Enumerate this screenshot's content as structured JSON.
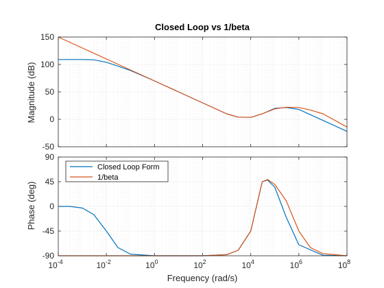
{
  "chart_data": {
    "type": "line",
    "title": "Closed Loop vs 1/beta",
    "xlabel": "Frequency  (rad/s)",
    "xscale": "log",
    "xlim": [
      0.0001,
      100000000
    ],
    "xticks": [
      {
        "value": 0.0001,
        "base": "10",
        "exp": "-4"
      },
      {
        "value": 0.01,
        "base": "10",
        "exp": "-2"
      },
      {
        "value": 1,
        "base": "10",
        "exp": "0"
      },
      {
        "value": 100,
        "base": "10",
        "exp": "2"
      },
      {
        "value": 10000,
        "base": "10",
        "exp": "4"
      },
      {
        "value": 1000000,
        "base": "10",
        "exp": "6"
      },
      {
        "value": 100000000,
        "base": "10",
        "exp": "8"
      }
    ],
    "grid": true,
    "colors": {
      "closed_loop": "#0072BD",
      "inv_beta": "#D95319"
    },
    "legend": {
      "placement": "upper-left of lower panel",
      "entries": [
        "Closed Loop Form",
        "1/beta"
      ]
    },
    "panels": [
      {
        "id": "magnitude",
        "ylabel": "Magnitude (dB)",
        "ylim": [
          -50,
          150
        ],
        "yticks": [
          "150",
          "100",
          "50",
          "0",
          "-50"
        ],
        "yticks_values": [
          150,
          100,
          50,
          0,
          -50
        ],
        "series": [
          {
            "name": "Closed Loop Form",
            "color": "#0072BD",
            "x": [
              0.0001,
              0.001,
              0.003,
              0.01,
              0.03,
              0.1,
              1,
              10,
              100,
              1000,
              3000,
              10000,
              30000,
              100000,
              300000,
              1000000,
              10000000,
              100000000
            ],
            "y": [
              109,
              109,
              108.5,
              104,
              97,
              89,
              70,
              50,
              30,
              10,
              4,
              3.5,
              10,
              20,
              21.5,
              18,
              -2,
              -22
            ]
          },
          {
            "name": "1/beta",
            "color": "#D95319",
            "x": [
              0.0001,
              0.001,
              0.01,
              0.1,
              1,
              10,
              100,
              1000,
              3000,
              10000,
              30000,
              100000,
              300000,
              1000000,
              3000000,
              10000000,
              100000000
            ],
            "y": [
              150,
              130,
              110,
              90,
              70,
              50,
              30,
              10,
              4,
              3.5,
              10,
              19,
              22,
              21.5,
              17,
              10,
              -14
            ]
          }
        ]
      },
      {
        "id": "phase",
        "ylabel": "Phase (deg)",
        "ylim": [
          -90,
          90
        ],
        "yticks": [
          "90",
          "45",
          "0",
          "-45",
          "-90"
        ],
        "yticks_values": [
          90,
          45,
          0,
          -45,
          -90
        ],
        "series": [
          {
            "name": "Closed Loop Form",
            "color": "#0072BD",
            "x": [
              0.0001,
              0.0003,
              0.001,
              0.003,
              0.01,
              0.03,
              0.1,
              1,
              100,
              1000,
              3000,
              10000,
              30000,
              50000,
              100000,
              300000,
              1000000,
              10000000,
              100000000
            ],
            "y": [
              0,
              0,
              -3,
              -15,
              -45,
              -75,
              -87,
              -90,
              -90,
              -88,
              -80,
              -45,
              45,
              48,
              35,
              -20,
              -70,
              -89,
              -90
            ]
          },
          {
            "name": "1/beta",
            "color": "#D95319",
            "x": [
              0.0001,
              1,
              100,
              1000,
              3000,
              10000,
              30000,
              50000,
              100000,
              300000,
              1000000,
              3000000,
              10000000,
              100000000
            ],
            "y": [
              -90,
              -90,
              -90,
              -88,
              -80,
              -45,
              45,
              49,
              40,
              10,
              -45,
              -75,
              -86,
              -90
            ]
          }
        ]
      }
    ]
  }
}
